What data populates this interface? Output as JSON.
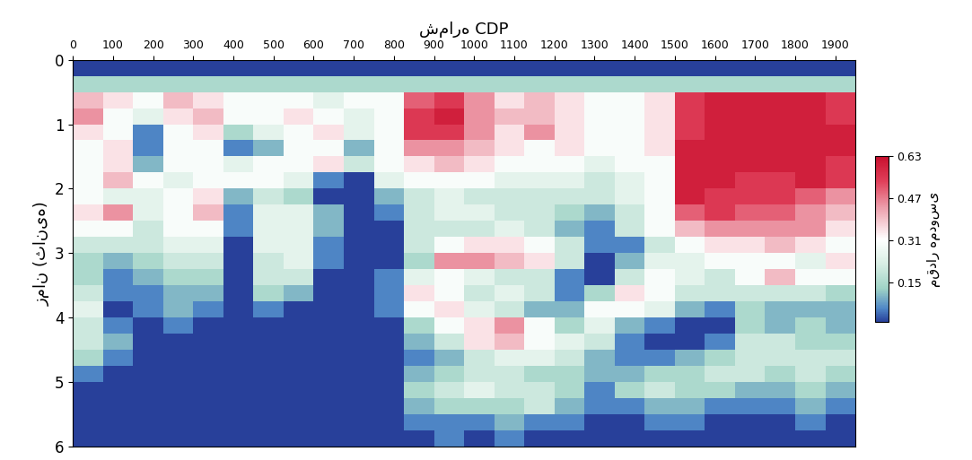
{
  "chart_data": {
    "type": "heatmap",
    "x_label": "شماره CDP",
    "y_label": "زمان (ثانیه)",
    "xlim": [
      0,
      1950
    ],
    "ylim": [
      6,
      0
    ],
    "xticks": [
      0,
      100,
      200,
      300,
      400,
      500,
      600,
      700,
      800,
      900,
      1000,
      1100,
      1200,
      1300,
      1400,
      1500,
      1600,
      1700,
      1800,
      1900
    ],
    "yticks": [
      0,
      1,
      2,
      3,
      4,
      5,
      6
    ],
    "x": [
      37.5,
      112.5,
      187.5,
      262.5,
      337.5,
      412.5,
      487.5,
      562.5,
      637.5,
      712.5,
      787.5,
      862.5,
      937.5,
      1012.5,
      1087.5,
      1162.5,
      1237.5,
      1312.5,
      1387.5,
      1462.5,
      1537.5,
      1612.5,
      1687.5,
      1762.5,
      1837.5,
      1912.5
    ],
    "y": [
      0.125,
      0.375,
      0.625,
      0.875,
      1.125,
      1.375,
      1.625,
      1.875,
      2.125,
      2.375,
      2.625,
      2.875,
      3.125,
      3.375,
      3.625,
      3.875,
      4.125,
      4.375,
      4.625,
      4.875,
      5.125,
      5.375,
      5.625,
      5.875
    ],
    "cells": [
      [
        0,
        0,
        0,
        0,
        0,
        0,
        0,
        0,
        0,
        0,
        0,
        0,
        0,
        0,
        0,
        0,
        0,
        0,
        0,
        0,
        0,
        0,
        0,
        0,
        0,
        0
      ],
      [
        0.15,
        0.15,
        0.15,
        0.15,
        0.15,
        0.15,
        0.15,
        0.15,
        0.15,
        0.15,
        0.15,
        0.15,
        0.15,
        0.15,
        0.15,
        0.15,
        0.15,
        0.15,
        0.15,
        0.15,
        0.15,
        0.15,
        0.15,
        0.15,
        0.15,
        0.15
      ],
      [
        0.4,
        0.35,
        0.3,
        0.4,
        0.35,
        0.3,
        0.3,
        0.3,
        0.25,
        0.3,
        0.3,
        0.5,
        0.55,
        0.45,
        0.35,
        0.4,
        0.35,
        0.3,
        0.3,
        0.35,
        0.55,
        0.6,
        0.6,
        0.6,
        0.6,
        0.55
      ],
      [
        0.45,
        0.3,
        0.25,
        0.35,
        0.4,
        0.3,
        0.3,
        0.35,
        0.3,
        0.25,
        0.3,
        0.55,
        0.6,
        0.45,
        0.4,
        0.4,
        0.35,
        0.3,
        0.3,
        0.35,
        0.55,
        0.6,
        0.6,
        0.6,
        0.6,
        0.55
      ],
      [
        0.35,
        0.3,
        0.05,
        0.3,
        0.35,
        0.15,
        0.25,
        0.3,
        0.35,
        0.25,
        0.3,
        0.55,
        0.55,
        0.45,
        0.35,
        0.45,
        0.35,
        0.3,
        0.3,
        0.35,
        0.55,
        0.6,
        0.6,
        0.6,
        0.6,
        0.6
      ],
      [
        0.3,
        0.35,
        0.05,
        0.3,
        0.3,
        0.05,
        0.1,
        0.3,
        0.3,
        0.1,
        0.3,
        0.45,
        0.45,
        0.4,
        0.35,
        0.3,
        0.35,
        0.3,
        0.3,
        0.35,
        0.6,
        0.6,
        0.6,
        0.6,
        0.6,
        0.6
      ],
      [
        0.3,
        0.35,
        0.1,
        0.3,
        0.3,
        0.25,
        0.3,
        0.3,
        0.35,
        0.2,
        0.3,
        0.35,
        0.4,
        0.35,
        0.3,
        0.3,
        0.3,
        0.25,
        0.3,
        0.3,
        0.6,
        0.6,
        0.6,
        0.6,
        0.6,
        0.55
      ],
      [
        0.3,
        0.4,
        0.3,
        0.25,
        0.3,
        0.3,
        0.3,
        0.25,
        0.05,
        0.0,
        0.25,
        0.3,
        0.3,
        0.3,
        0.25,
        0.25,
        0.25,
        0.2,
        0.25,
        0.3,
        0.6,
        0.6,
        0.55,
        0.55,
        0.6,
        0.55
      ],
      [
        0.3,
        0.25,
        0.25,
        0.3,
        0.35,
        0.1,
        0.2,
        0.15,
        0.0,
        0.0,
        0.1,
        0.2,
        0.25,
        0.2,
        0.2,
        0.2,
        0.2,
        0.2,
        0.25,
        0.3,
        0.6,
        0.55,
        0.55,
        0.55,
        0.5,
        0.45
      ],
      [
        0.35,
        0.45,
        0.25,
        0.3,
        0.4,
        0.05,
        0.25,
        0.25,
        0.1,
        0.0,
        0.05,
        0.2,
        0.25,
        0.25,
        0.2,
        0.2,
        0.15,
        0.1,
        0.2,
        0.3,
        0.5,
        0.55,
        0.5,
        0.5,
        0.45,
        0.4
      ],
      [
        0.3,
        0.3,
        0.2,
        0.3,
        0.3,
        0.05,
        0.25,
        0.25,
        0.1,
        0.0,
        0.0,
        0.2,
        0.2,
        0.2,
        0.25,
        0.2,
        0.1,
        0.05,
        0.2,
        0.3,
        0.4,
        0.45,
        0.45,
        0.45,
        0.45,
        0.35
      ],
      [
        0.2,
        0.2,
        0.2,
        0.25,
        0.25,
        0.0,
        0.25,
        0.25,
        0.05,
        0.0,
        0.0,
        0.2,
        0.3,
        0.35,
        0.35,
        0.3,
        0.2,
        0.05,
        0.05,
        0.2,
        0.3,
        0.35,
        0.35,
        0.4,
        0.35,
        0.3
      ],
      [
        0.15,
        0.1,
        0.15,
        0.2,
        0.2,
        0.0,
        0.2,
        0.25,
        0.05,
        0.0,
        0.0,
        0.15,
        0.45,
        0.45,
        0.4,
        0.35,
        0.2,
        0.0,
        0.1,
        0.25,
        0.25,
        0.3,
        0.3,
        0.3,
        0.25,
        0.35
      ],
      [
        0.15,
        0.05,
        0.1,
        0.15,
        0.15,
        0.0,
        0.2,
        0.2,
        0.0,
        0.0,
        0.05,
        0.25,
        0.3,
        0.25,
        0.2,
        0.2,
        0.05,
        0.0,
        0.2,
        0.3,
        0.25,
        0.2,
        0.3,
        0.4,
        0.3,
        0.3
      ],
      [
        0.2,
        0.05,
        0.05,
        0.1,
        0.1,
        0.0,
        0.15,
        0.1,
        0.0,
        0.0,
        0.05,
        0.35,
        0.3,
        0.2,
        0.25,
        0.2,
        0.05,
        0.15,
        0.35,
        0.3,
        0.2,
        0.2,
        0.2,
        0.2,
        0.2,
        0.15
      ],
      [
        0.25,
        0.0,
        0.05,
        0.1,
        0.05,
        0.0,
        0.05,
        0.0,
        0.0,
        0.0,
        0.05,
        0.3,
        0.35,
        0.25,
        0.2,
        0.1,
        0.1,
        0.3,
        0.3,
        0.25,
        0.1,
        0.05,
        0.15,
        0.1,
        0.1,
        0.1
      ],
      [
        0.2,
        0.05,
        0.0,
        0.05,
        0.0,
        0.0,
        0.0,
        0.0,
        0.0,
        0.0,
        0.0,
        0.15,
        0.3,
        0.35,
        0.45,
        0.3,
        0.15,
        0.25,
        0.1,
        0.05,
        0.0,
        0.0,
        0.15,
        0.1,
        0.15,
        0.1
      ],
      [
        0.2,
        0.1,
        0.0,
        0.0,
        0.0,
        0.0,
        0.0,
        0.0,
        0.0,
        0.0,
        0.0,
        0.1,
        0.2,
        0.35,
        0.4,
        0.3,
        0.25,
        0.2,
        0.05,
        0.0,
        0.0,
        0.05,
        0.2,
        0.2,
        0.15,
        0.15
      ],
      [
        0.15,
        0.05,
        0.0,
        0.0,
        0.0,
        0.0,
        0.0,
        0.0,
        0.0,
        0.0,
        0.0,
        0.05,
        0.1,
        0.2,
        0.25,
        0.25,
        0.2,
        0.1,
        0.05,
        0.05,
        0.1,
        0.15,
        0.2,
        0.2,
        0.2,
        0.2
      ],
      [
        0.05,
        0.0,
        0.0,
        0.0,
        0.0,
        0.0,
        0.0,
        0.0,
        0.0,
        0.0,
        0.0,
        0.1,
        0.15,
        0.2,
        0.2,
        0.15,
        0.15,
        0.1,
        0.1,
        0.15,
        0.15,
        0.2,
        0.2,
        0.15,
        0.2,
        0.15
      ],
      [
        0.0,
        0.0,
        0.0,
        0.0,
        0.0,
        0.0,
        0.0,
        0.0,
        0.0,
        0.0,
        0.0,
        0.15,
        0.2,
        0.25,
        0.2,
        0.2,
        0.15,
        0.05,
        0.15,
        0.2,
        0.15,
        0.15,
        0.1,
        0.1,
        0.15,
        0.1
      ],
      [
        0.0,
        0.0,
        0.0,
        0.0,
        0.0,
        0.0,
        0.0,
        0.0,
        0.0,
        0.0,
        0.0,
        0.1,
        0.15,
        0.15,
        0.15,
        0.2,
        0.1,
        0.05,
        0.05,
        0.1,
        0.1,
        0.05,
        0.05,
        0.05,
        0.1,
        0.05
      ],
      [
        0.0,
        0.0,
        0.0,
        0.0,
        0.0,
        0.0,
        0.0,
        0.0,
        0.0,
        0.0,
        0.0,
        0.05,
        0.05,
        0.05,
        0.1,
        0.05,
        0.05,
        0.0,
        0.0,
        0.05,
        0.05,
        0.0,
        0.0,
        0.0,
        0.05,
        0.0
      ],
      [
        0.0,
        0.0,
        0.0,
        0.0,
        0.0,
        0.0,
        0.0,
        0.0,
        0.0,
        0.0,
        0.0,
        0.0,
        0.05,
        0.0,
        0.05,
        0.0,
        0.0,
        0.0,
        0.0,
        0.0,
        0.0,
        0.0,
        0.0,
        0.0,
        0.0,
        0.0
      ]
    ],
    "colorbar": {
      "label": "مقدار همدوسی",
      "range": [
        0,
        0.63
      ],
      "ticks": [
        0.15,
        0.31,
        0.47,
        0.63
      ]
    }
  }
}
